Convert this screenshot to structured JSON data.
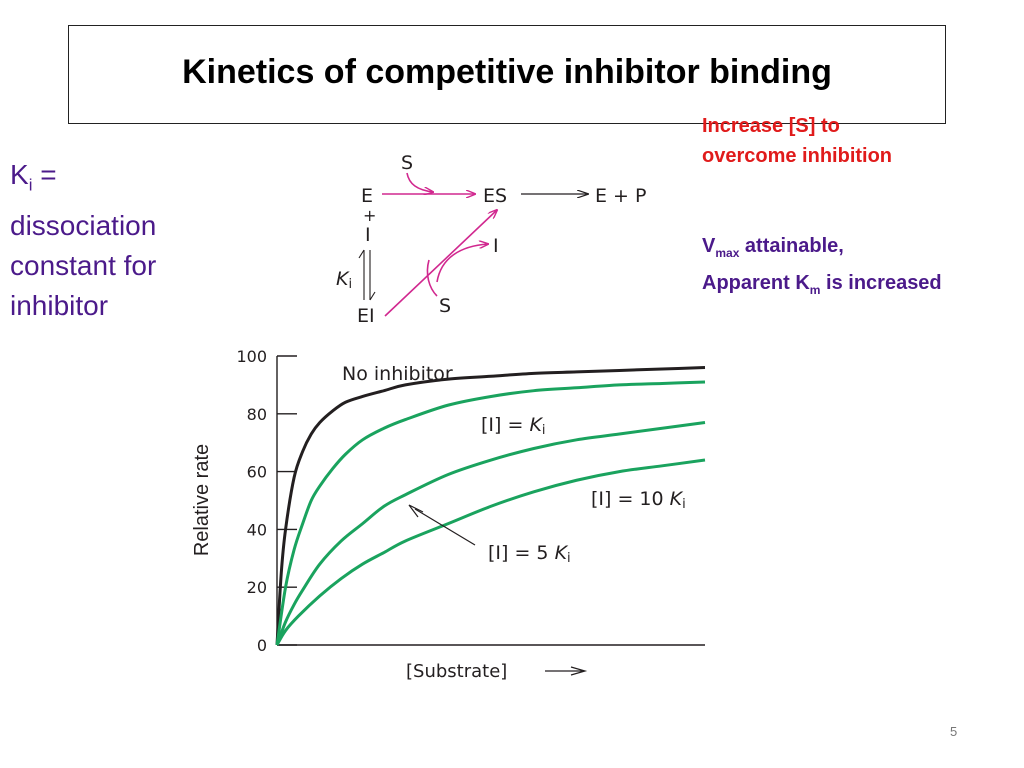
{
  "slide": {
    "title": "Kinetics of competitive inhibitor binding",
    "number": "5"
  },
  "ki_note": {
    "k": "K",
    "i_sub": "i",
    "rest": " = dissociation constant for inhibitor"
  },
  "overcome_note": {
    "text": "Increase [S] to overcome inhibition"
  },
  "vmax_note": {
    "v": "V",
    "max_sub": "max",
    "attainable": " attainable,",
    "apparent": "Apparent K",
    "m_sub": "m",
    "increased": " is increased"
  },
  "scheme": {
    "E": "E",
    "S_top": "S",
    "ES": "ES",
    "EP": "E + P",
    "plus": "+",
    "I_left": "I",
    "Ki_K": "K",
    "Ki_i": "i",
    "EI": "EI",
    "I_right": "I",
    "S_bottom": "S",
    "arrow_color": "#d1288f"
  },
  "chart_data": {
    "type": "line",
    "xlabel": "[Substrate]",
    "ylabel": "Relative rate",
    "ylim": [
      0,
      100
    ],
    "yticks": [
      0,
      20,
      40,
      60,
      80,
      100
    ],
    "grid": false,
    "series": [
      {
        "name": "No inhibitor",
        "color": "#231f20",
        "x": [
          0,
          0.01,
          0.02,
          0.04,
          0.06,
          0.08,
          0.1,
          0.13,
          0.16,
          0.2,
          0.25,
          0.3,
          0.4,
          0.5,
          0.6,
          0.7,
          0.8,
          0.9,
          1.0
        ],
        "y": [
          0,
          25,
          40,
          58,
          67,
          73,
          77,
          81,
          84,
          86,
          88,
          90,
          92,
          93,
          94,
          94.5,
          95,
          95.5,
          96
        ]
      },
      {
        "name": "[I] = Ki",
        "label_tail": "i",
        "color": "#1aa35e",
        "x": [
          0,
          0.02,
          0.04,
          0.06,
          0.08,
          0.1,
          0.13,
          0.16,
          0.2,
          0.25,
          0.3,
          0.4,
          0.5,
          0.6,
          0.7,
          0.8,
          0.9,
          1.0
        ],
        "y": [
          0,
          20,
          33,
          42,
          50,
          55,
          61,
          66,
          71,
          75,
          78,
          83,
          86,
          88,
          89,
          90,
          90.5,
          91
        ]
      },
      {
        "name": "[I] = 5 Ki",
        "label_tail": "i",
        "color": "#1aa35e",
        "x": [
          0,
          0.02,
          0.04,
          0.06,
          0.1,
          0.15,
          0.2,
          0.25,
          0.3,
          0.4,
          0.5,
          0.6,
          0.7,
          0.8,
          0.9,
          1.0
        ],
        "y": [
          0,
          8,
          14,
          19,
          28,
          36,
          42,
          48,
          52,
          59,
          64,
          68,
          71,
          73,
          75,
          77
        ]
      },
      {
        "name": "[I] = 10 Ki",
        "label_tail": "i",
        "color": "#1aa35e",
        "x": [
          0,
          0.02,
          0.05,
          0.1,
          0.15,
          0.2,
          0.25,
          0.3,
          0.4,
          0.5,
          0.6,
          0.7,
          0.8,
          0.9,
          1.0
        ],
        "y": [
          0,
          5,
          10,
          17,
          23,
          28,
          32,
          36,
          42,
          48,
          53,
          57,
          60,
          62,
          64
        ]
      }
    ],
    "annotations": {
      "no_inhibitor": "No inhibitor",
      "i_eq_ki_prefix": "[I] = ",
      "i_eq_10ki_prefix": "[I] = 10 ",
      "i_eq_5ki_prefix": "[I] = 5 ",
      "k": "K",
      "i": "i"
    }
  }
}
